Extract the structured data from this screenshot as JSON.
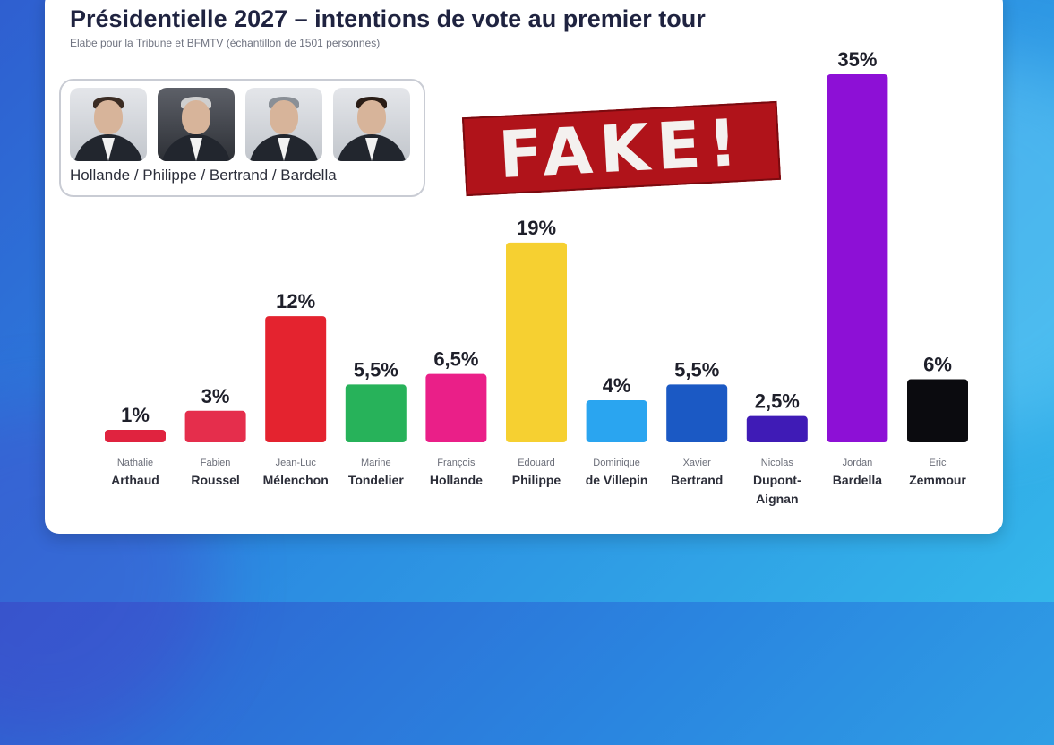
{
  "header": {
    "title": "Présidentielle 2027 – intentions de vote au premier tour",
    "subtitle": "Elabe pour la Tribune et  BFMTV (échantillon de 1501 personnes)"
  },
  "candidates_box": {
    "label": "Hollande / Philippe / Bertrand / Bardella",
    "photos": [
      "Hollande",
      "Philippe",
      "Bertrand",
      "Bardella"
    ]
  },
  "stamp": {
    "text": "FAKE!",
    "color": "#b0131a"
  },
  "chart_data": {
    "type": "bar",
    "title": "Présidentielle 2027 – intentions de vote au premier tour",
    "xlabel": "",
    "ylabel": "",
    "ylim": [
      0,
      35
    ],
    "grid": false,
    "categories": [
      {
        "first": "Nathalie",
        "last": [
          "Arthaud"
        ]
      },
      {
        "first": "Fabien",
        "last": [
          "Roussel"
        ]
      },
      {
        "first": "Jean-Luc",
        "last": [
          "Mélenchon"
        ]
      },
      {
        "first": "Marine",
        "last": [
          "Tondelier"
        ]
      },
      {
        "first": "François",
        "last": [
          "Hollande"
        ]
      },
      {
        "first": "Edouard",
        "last": [
          "Philippe"
        ]
      },
      {
        "first": "Dominique",
        "last": [
          "de Villepin"
        ]
      },
      {
        "first": "Xavier",
        "last": [
          "Bertrand"
        ]
      },
      {
        "first": "Nicolas",
        "last": [
          "Dupont-",
          "Aignan"
        ]
      },
      {
        "first": "Jordan",
        "last": [
          "Bardella"
        ]
      },
      {
        "first": "Eric",
        "last": [
          "Zemmour"
        ]
      }
    ],
    "values": [
      1,
      3,
      12,
      5.5,
      6.5,
      19,
      4,
      5.5,
      2.5,
      35,
      6
    ],
    "value_labels": [
      "1%",
      "3%",
      "12%",
      "5,5%",
      "6,5%",
      "19%",
      "4%",
      "5,5%",
      "2,5%",
      "35%",
      "6%"
    ],
    "colors": [
      "#e0233f",
      "#e52e4c",
      "#e4232f",
      "#27b25a",
      "#ea1f88",
      "#f6d031",
      "#2aa5f0",
      "#1b59c4",
      "#3f1bb6",
      "#8d10d6",
      "#0b0b0f"
    ]
  }
}
